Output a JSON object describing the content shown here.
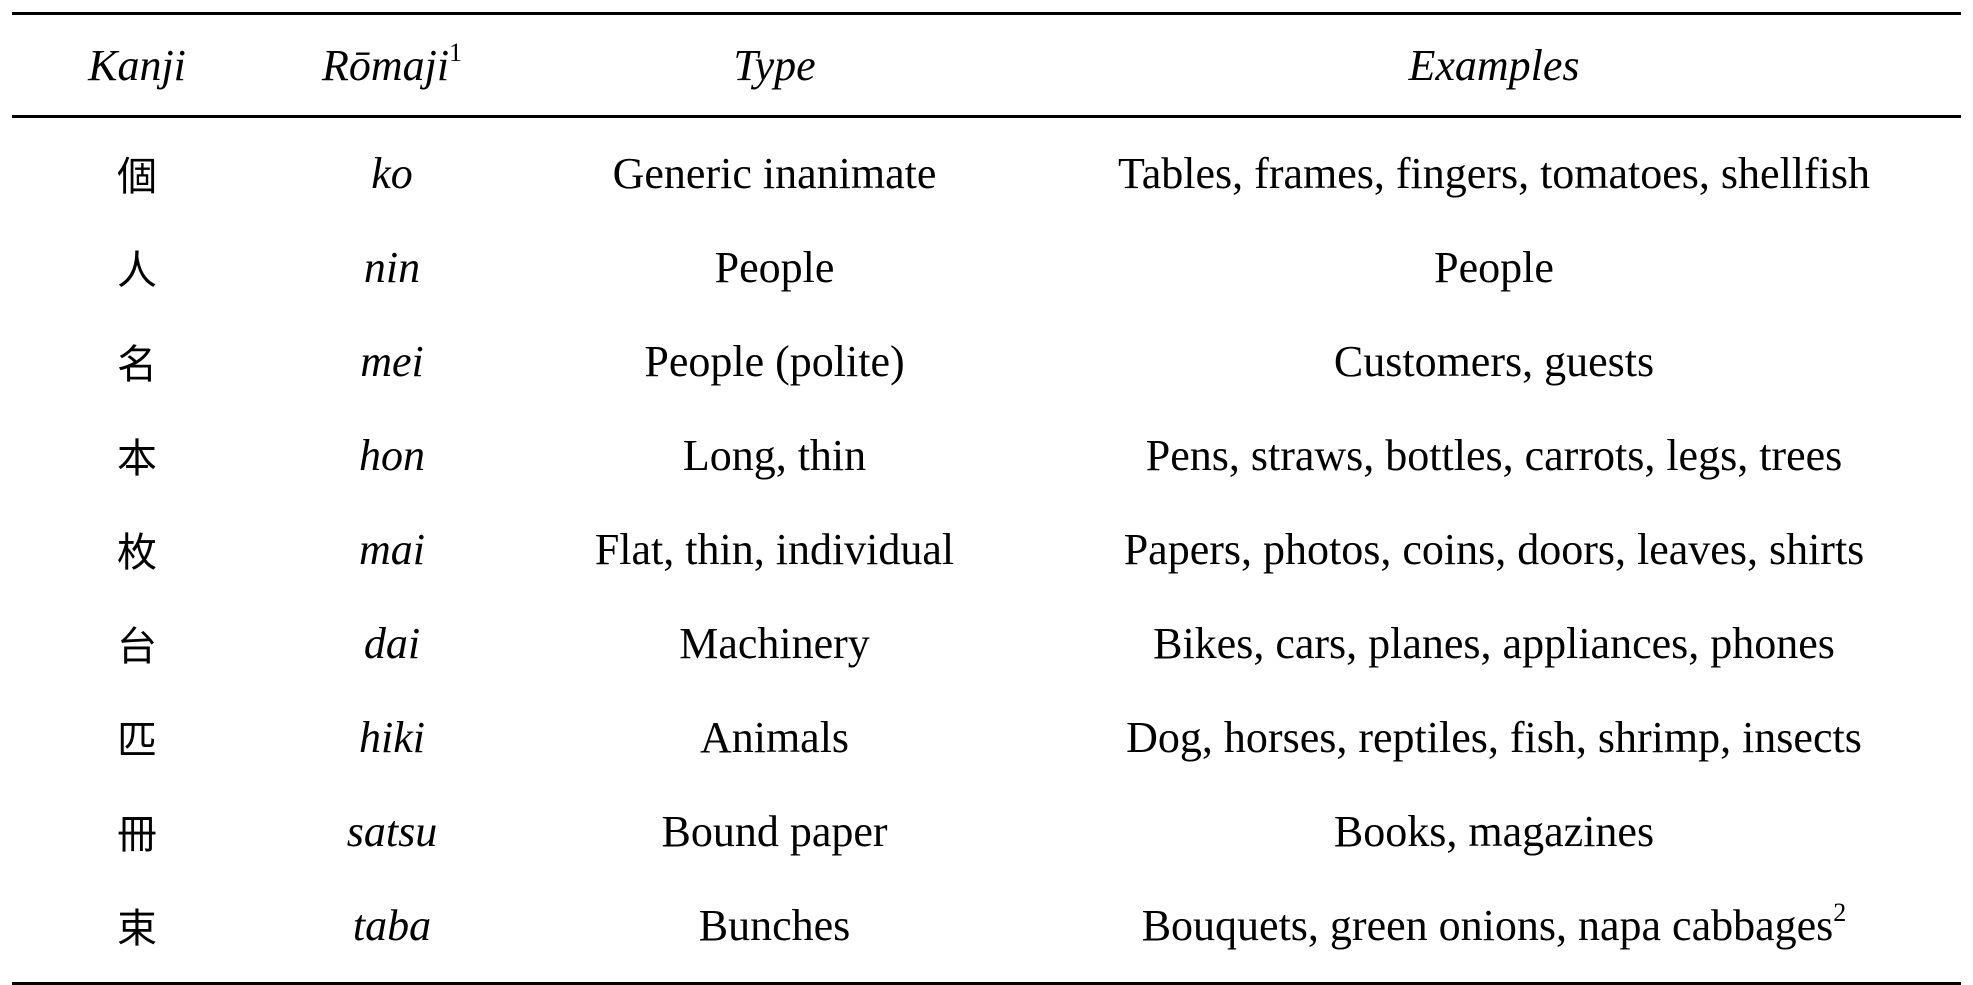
{
  "table": {
    "headers": {
      "kanji": "Kanji",
      "romaji": "Rōmaji",
      "romaji_note": "1",
      "type": "Type",
      "examples": "Examples"
    },
    "rows": [
      {
        "kanji": "個",
        "romaji": "ko",
        "type": "Generic inanimate",
        "examples": "Tables, frames, fingers, tomatoes, shellfish",
        "note": ""
      },
      {
        "kanji": "人",
        "romaji": "nin",
        "type": "People",
        "examples": "People",
        "note": ""
      },
      {
        "kanji": "名",
        "romaji": "mei",
        "type": "People (polite)",
        "examples": "Customers, guests",
        "note": ""
      },
      {
        "kanji": "本",
        "romaji": "hon",
        "type": "Long, thin",
        "examples": "Pens, straws, bottles, carrots, legs, trees",
        "note": ""
      },
      {
        "kanji": "枚",
        "romaji": "mai",
        "type": "Flat, thin, individual",
        "examples": "Papers, photos, coins, doors, leaves, shirts",
        "note": ""
      },
      {
        "kanji": "台",
        "romaji": "dai",
        "type": "Machinery",
        "examples": "Bikes, cars, planes, appliances, phones",
        "note": ""
      },
      {
        "kanji": "匹",
        "romaji": "hiki",
        "type": "Animals",
        "examples": "Dog, horses, reptiles, fish, shrimp, insects",
        "note": ""
      },
      {
        "kanji": "冊",
        "romaji": "satsu",
        "type": "Bound paper",
        "examples": "Books, magazines",
        "note": ""
      },
      {
        "kanji": "束",
        "romaji": "taba",
        "type": "Bunches",
        "examples": "Bouquets, green onions, napa cabbages",
        "note": "2"
      }
    ]
  }
}
